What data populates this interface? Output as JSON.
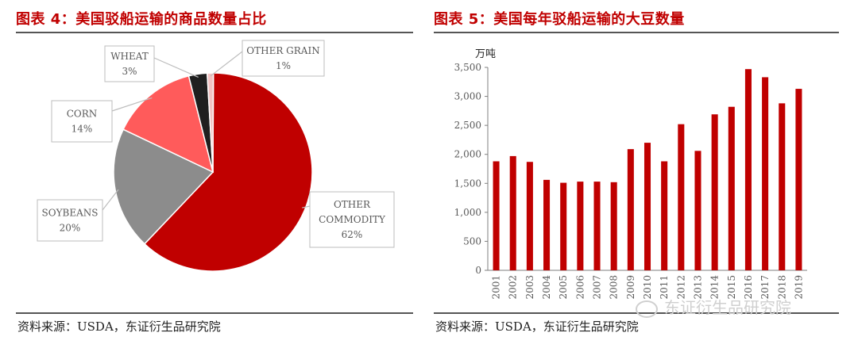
{
  "left": {
    "title": "图表 4：美国驳船运输的商品数量占比",
    "source": "资料来源：USDA，东证衍生品研究院"
  },
  "right": {
    "title": "图表 5：美国每年驳船运输的大豆数量",
    "source": "资料来源：USDA，东证衍生品研究院"
  },
  "watermark": "东证衍生品研究院",
  "chart_data": [
    {
      "type": "pie",
      "slices": [
        {
          "label": "OTHER COMMODITY",
          "label_lines": [
            "OTHER",
            "COMMODITY"
          ],
          "pct_label": "62%",
          "value": 62,
          "color": "#c00000"
        },
        {
          "label": "SOYBEANS",
          "label_lines": [
            "SOYBEANS"
          ],
          "pct_label": "20%",
          "value": 20,
          "color": "#8c8c8c"
        },
        {
          "label": "CORN",
          "label_lines": [
            "CORN"
          ],
          "pct_label": "14%",
          "value": 14,
          "color": "#ff5b5b"
        },
        {
          "label": "WHEAT",
          "label_lines": [
            "WHEAT"
          ],
          "pct_label": "3%",
          "value": 3,
          "color": "#1f1f1f"
        },
        {
          "label": "OTHER GRAIN",
          "label_lines": [
            "OTHER GRAIN"
          ],
          "pct_label": "1%",
          "value": 1,
          "color": "#f2c2c2"
        }
      ]
    },
    {
      "type": "bar",
      "ylabel": "万吨",
      "ylim": [
        0,
        3500
      ],
      "yticks": [
        "0",
        "500",
        "1,000",
        "1,500",
        "2,000",
        "2,500",
        "3,000",
        "3,500"
      ],
      "ytick_values": [
        0,
        500,
        1000,
        1500,
        2000,
        2500,
        3000,
        3500
      ],
      "categories": [
        "2001",
        "2002",
        "2003",
        "2004",
        "2005",
        "2006",
        "2007",
        "2008",
        "2009",
        "2010",
        "2011",
        "2012",
        "2013",
        "2014",
        "2015",
        "2016",
        "2017",
        "2018",
        "2019"
      ],
      "values": [
        1880,
        1970,
        1870,
        1560,
        1510,
        1530,
        1530,
        1520,
        2090,
        2200,
        1880,
        2520,
        2060,
        2690,
        2820,
        3470,
        3330,
        2880,
        3130
      ],
      "color": "#c00000"
    }
  ]
}
